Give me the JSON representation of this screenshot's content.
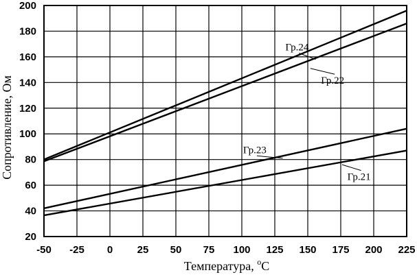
{
  "chart_data": {
    "type": "line",
    "title": "",
    "xlabel": "Температура, ",
    "xlabel_sup": "o",
    "xlabel_unit": "C",
    "ylabel": "Сопротивление, Ом",
    "xlim": [
      -50,
      225
    ],
    "ylim": [
      20,
      200
    ],
    "grid": true,
    "x_ticks": [
      "-50",
      "-25",
      "0",
      "25",
      "50",
      "75",
      "100",
      "125",
      "150",
      "175",
      "200",
      "225"
    ],
    "y_ticks": [
      "20",
      "40",
      "60",
      "80",
      "100",
      "120",
      "140",
      "160",
      "180",
      "200"
    ],
    "x_tick_values": [
      -50,
      -25,
      0,
      25,
      50,
      75,
      100,
      125,
      150,
      175,
      200,
      225
    ],
    "y_tick_values": [
      20,
      40,
      60,
      80,
      100,
      120,
      140,
      160,
      180,
      200
    ],
    "series": [
      {
        "name": "Гр.24",
        "x": [
          -50,
          225
        ],
        "values": [
          80,
          196
        ]
      },
      {
        "name": "Гр.22",
        "x": [
          -50,
          225
        ],
        "values": [
          78.6,
          186
        ]
      },
      {
        "name": "Гр.23",
        "x": [
          -50,
          225
        ],
        "values": [
          42,
          104
        ]
      },
      {
        "name": "Гр.21",
        "x": [
          -50,
          225
        ],
        "values": [
          36.5,
          87
        ]
      }
    ],
    "annotations": [
      {
        "text": "Гр.24",
        "series": 0,
        "x": 133,
        "y": 165,
        "point_x": 156,
        "point_y": 158
      },
      {
        "text": "Гр.22",
        "series": 1,
        "x": 160,
        "y": 139,
        "point_x": 152,
        "point_y": 151
      },
      {
        "text": "Гр.23",
        "series": 2,
        "x": 101,
        "y": 85,
        "point_x": 131,
        "point_y": 81
      },
      {
        "text": "Гр.21",
        "series": 3,
        "x": 180,
        "y": 64,
        "point_x": 176,
        "point_y": 76
      }
    ]
  }
}
